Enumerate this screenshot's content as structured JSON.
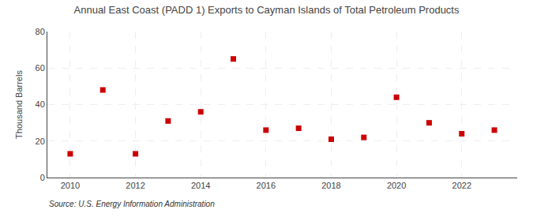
{
  "chart_data": {
    "type": "scatter",
    "title": "Annual East Coast (PADD 1) Exports to Cayman Islands of Total Petroleum Products",
    "ylabel": "Thousand Barrels",
    "annotations": [
      "Source: U.S. Energy Information Administration"
    ],
    "x": [
      2010,
      2011,
      2012,
      2013,
      2014,
      2015,
      2016,
      2017,
      2018,
      2019,
      2020,
      2021,
      2022,
      2023
    ],
    "values": [
      13,
      48,
      13,
      31,
      36,
      65,
      26,
      27,
      21,
      22,
      44,
      30,
      24,
      26
    ],
    "color": "#cc0000",
    "marker": "square",
    "xlim": [
      2009.3,
      2023.7
    ],
    "xticks": [
      2010,
      2012,
      2014,
      2016,
      2018,
      2020,
      2022
    ],
    "ylim": [
      0,
      80
    ],
    "yticks": [
      0,
      20,
      40,
      60,
      80
    ],
    "grid": true
  }
}
